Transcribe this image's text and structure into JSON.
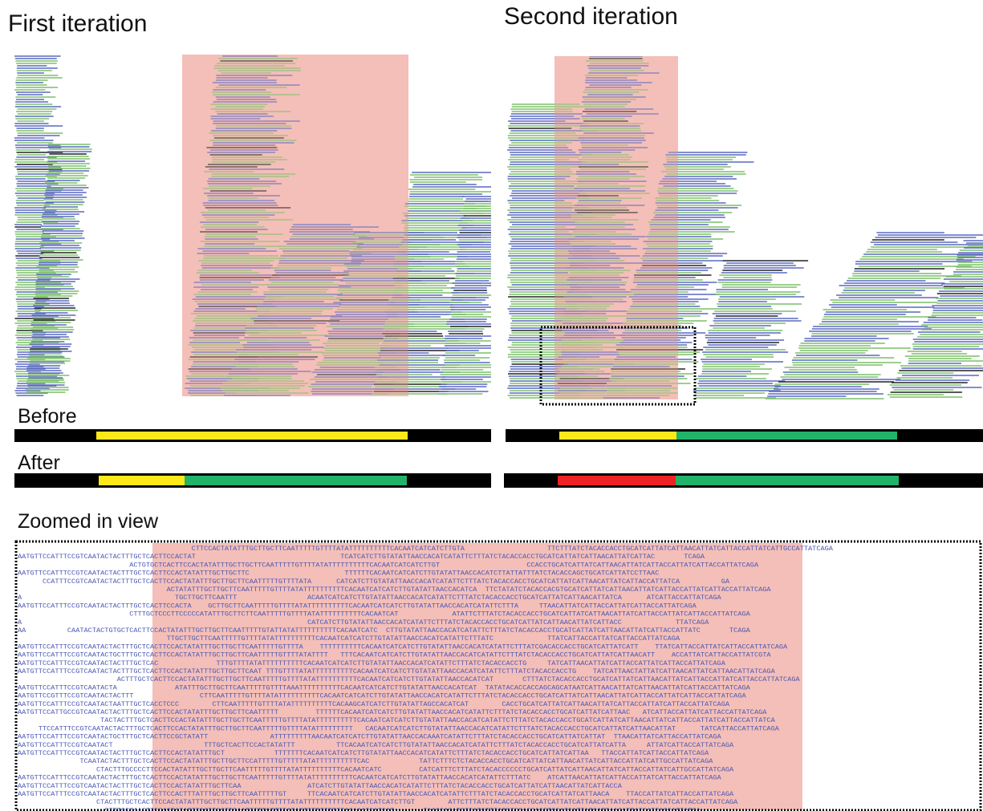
{
  "header": {
    "left_title": "First iteration",
    "right_title": "Second iteration"
  },
  "tracks": {
    "before": "Before",
    "after": "After"
  },
  "zoom": {
    "title": "Zoomed in view",
    "rows": [
      "                                          CTTCCACTATATTTGCTTGCTTCAATTTTTGTTTTATATTTTTTTTTTCACAATCATCATCTTGTA                    TTCTTTATCTACACCACCTGCATCATTATCATTAACATTATCATTACCATTATCATTGCCATTATCAGA",
      "AATGTTCCATTTCCGTCAATACTACTTTGCTCACTTCCACTAT                                   TCATCATCTTGTATATTAACCACATCATATTCTTTATCTACACCACCTGCATCATTATCATTAACATTATCATTAC       TCAGA",
      "                           ACTGTGCTCACTTCCACTATATTTGCTTGCTTCAATTTTTGTTTTATATTTTTTTTTTCACAATCATCATCTTGT                     CCACCTGCATCATTATCATTAACATTATCATTACCATTATCATTACCATTATCAGA",
      "AATGTTCCATTTCCGTCAATACTACTTTGCTCACTTCCACTATATTTGCTTGCTTC                       TTTTTTCACAATCATCATCTTGTATATTAACCACATCTTATTATTTATCTACACCAGCTGCATCATTATCCTTAAC",
      "      CCATTTCCGTCAATACTACTTTGCTCACTTCCACTATATTTGCTTGCTTCAATTTTTGTTTTATA      CATCATCTTGTATATTAACCACATCATATTCTTTATCTACACCACCTGCATCATTATCATTAACATTATCATTACCATTATCA          GA",
      "                                    ACTATATTTGCTTGCTTCAATTTTTGTTTTATATTTTTTTTTTCACAATCATCATCTTGTATATTAACCACATCA  TTCTATATCTACACCACGTGCATCATTATCATTAACATTATCATTACCATTATCATTACCATTATCAGA",
      "A                                     TGCTTGCTTCAATTT                 ACAATCATCATCTTGTATATTAACCACATCATATTCTTTATCTACACCACCTGCATCATTATCATTAACATTATCA      ATCATTACCATTATCAGA",
      "AATGTTCCATTTCCGTCAATACTACTTTGCTCACTTCCACTA    GCTTGCTTCAATTTTTGTTTTATATTTTTTTTTTCACAATCATCATCTTGTATATTAACCACATCATATTCTTTA     TTAACATTATCATTACCATTATCATTACCATTATCAGA",
      "                           CTTTGCTCCCTTCCCCCATATTTGCTTCTTCAATTTTTGTTTTATATTTTTTTTTTCACAATCAT             ATATTCTTTATCTACACCACCTGCATCATTATCATTAACATTATCATTACCATTATCATTACCATTATCAGA",
      "A                                                                     CATCATCTTGTATATTAACCACATCATATTCTTTATCTACACCACCTGCATCATTATCATTAACATTATCATTACC             TTATCAGA",
      "AA          CAATACTACTGTGCTCACTTCCACTATATTTGCTTGCTTCAATTTTTGTATTATATTTTTTTTTTCACAATCATC  CTTGTATATTAACCACATCATATTCTTTATCTACACCACCTGCATCATTATCATTAACATTATCATTACCATTATC       TCAGA",
      "                                    TTGCTTGCTTCAATTTTTGTTTTATATTTTTTTTTTCACAATCATCATCTTGTATATTAACCACATCATATTCTTTATC             TTATCATTACCATTATCATTACCATTATCAGA",
      "AATGTTCCATTTCCGTCAATACTACTTTGCTCACTTCCACTATATTTGCTTGCTTCAATTTTTGTTTTA    TTTTTTTTTTCACAATCATCATCTTGTATATTAACCACATCATATTCTTTATCGACACCACCTGCATCATTATCATT    TTATCATTACCATTATCATTACCATTATCAGA",
      "AATGTTCCATTTCCGTCAATACTGCTTTGCTCACTTCCACTATATTTGCTTGCTTCAATTTTTGTTTTATATTTT   TTTCACAATCATCATCTTGTATATTAACCACATCATATTCTTTATCTACACCACCTGCATCATTATCATTAACATT    ACCATTATCATTACCATTATCGTA",
      "AATGTTCCATTTCCGTCAATACTACTTTGCTCAC              TTTGTTTTATATTTTTTTTTTCACAATCATCATCTTGTATATTAACCACATCATATTCTTTATCTACACCACCTG     TATCATTAACATTATCATTACCATTATCATTACCATTATCAGA",
      "AATGTTCCATTTCCGTCAATACTACTTTGCTCACTTCCACTATATTTGCTTGCTTCAAT TTTGTTTTATATTTTTTTTTTCACAATCATCATCTTGTATATTAACCACATCATATTCTTTATCTACACCACCTG    TATCATTAACTATTATCATTAACATTATCATTAACATTATCAGA",
      "                        ACTTTGCTCACTTCCACTATATTTGCTTGCTTCAATTTTTGTTTTATATTTTTTTTTTCACAATCATCATCTTGTATATTAACCACATCAT       CTTTATCTACACCACCTGCATCATTATCATTAACATTATCATTACCATTATCATTACCATTATCAGA",
      "AATGTTCCATTTCCGTCAATACTA              ATATTTGCTTGCTTCAATTTTTGTTTTAAATTTTTTTTTTCACAATCATCATCTTGTATATTAACCACATCAT  TATATACACCACCAGCAGCATAATCATTAACATTATCATTAACATTATCATTACCATTATCAGA",
      "AATGTTCCGTTTCCGTCAATACTACTTT                CTTCAATTTTTGTTTTATATTTTTTTTTTCACAATCATCATCTTGTATATTAACCACATCATATTCTTTATCTACACCACCTGCATCATTATCATTAACATTATCATTACCATTATCATTACCATTATCAGA",
      "AATGTTCCATTTCCGTCAATACTAATTTGCTCACCTCCC        CTTCAATTTTTGTTTTATATTTTTTTTTTCACAAGCATCATCTTGTATATTAGCCACATCAT        CACCTGCATCATTATCATTAACATTATCATTACCATTATCATTACCATTATCAGA",
      "AATGTTCCATTGCCGTCAATACTACTTTGCTCACTTCCACTATATTTGCTTGCTTCAATTTTT         TTTTTTCACAATCATCATCTTGTATATTAACCACATCATATTCTTTATCTACACCACCTGCATCATTATCATTAAC   ATCATTACCATTATCATTACCATTATCAGA",
      "                    TACTACTTTGCTCACTTCCACTATATTTGCTTGCTTCAATTTTTGTTTTATATTTTTTTTTTCACAATCATCATCTTGTATATTAACCACATCATATTCTTTATCTACACCACCTGCATCATTATCATTAACATTATCATTACCATTATCATTACCATTATCA",
      "     TTCCATTTCCGTCAATACTACTTTGCTCACTTCCACTATATTTGCTTGCTTCAATTTTTGTTTTATATTTTTTTTT   CACAATCATCATCTTGTATATTAACCACATCATATTCTTTATCTACACCACCTGCATCATTATCATTAACATTAT      TATCATTACCATTATCAGA",
      "AATGTTCCATTTCCGTCAATACTGCTTTGCTCACTTCCGCTATATT               ATTTTTTTTTAACAATCATCATCTTGTATATTAACCACAAATCATATTCTTTATCTACACCACCTGCATCATTATCATTAT  TTAACATTATCATTACCATTATCAGA",
      "AATGTTCCATTTCCGTCAATACT                      TTTGCTCACTTCCACTATATTT          TTCACAATCATCATCTTGTATATTAACCACATCATATTCTTTATCTACACCACCTGCATCATTATCATTA     ATTATCATTACCATTATCAGA",
      "AATGTTCCATTTCCGTCAATACTACTTTGCTCACTTCCACTATATTTGCT            TTTTTTTCACAATCATCATCTTGTATATTAACCACATCATATTCTTTATCTACACCACCTGCATCATTATCATTAA   TTACCATTATCATTACCATTATCAGA",
      "               TCAATACTACTTTGCTCACTTCCACTATATTTGCTTGCTTCCATTTTTGTTTTTATATTTTTTTTTTCAC            TATTCTTTCTCTACACCACCTGCATCATTATCATTAACATTATCATTACCATTATCATTGCCATTATCAGA",
      "                   CTACTTTGCCCCTTCCACTATATTTGCTTGCTTCAATTTTTGTTTTATATTTTTTTTTTCACAATCATC         CATCATTTCTTTATCTACACCCCCCTGCATCATTATCATTAACATTATCATTACCATTATCATTGCCATTATCAGA",
      "AATGTTCCATTTCCGTCAATACTACTTTGCTCACTTCCACTATATTTGCTTGCTTCAATTTTTGTTTTATATTTTTTTTTTCACAATCATCATCTTGTATATTAACCACATCATATTCTTTATC    ATCATTAACATTATCATTACCATTATCATTACCATTATCAGA",
      "AATGTTCCATTTCCGTCAATACTACTTTGCTCACTTCCACTATATTTGCTTCAA                ATCATCTTGTATATTAACCACATCATATTCTTTATCTACACCACCTGCATCATTATCATTAACATTATCATTACCA",
      "AATGTTCCATTTCCGTCAATACTACTTTGCTCACTTCCACTTTATTTGCTTGCTTCAATTTTTGT     TTCACAATCATCATCTTGTATATTAACCACATCATATTCTTTATCTACACCACCTGCATCATTATCATTAACA    TTACCATTATCATTACCATTATCAGA",
      "                   CTACTTTGCTCACTTCCACTATATTTGCTTGCTTCAATTTTTGTTTTATATTTTTTTTTTCACAATCATCATCTTGT        ATTCTTTATCTACACCACCTGCATCATTATCATTAACATTATCATTACCATTATCATTACCATTATCAGA",
      "                     CTTTGCTAACTTCCACTATATTTGCTTGCTTCAATTTTTGTTTTATATTTTTTTTTTTACAAATCATCAT       TAACCACATCTTATCTTTATCTCCACCACCTGCATCATTATCATTAACATTATCATTACCATTATCA"
    ]
  }
}
